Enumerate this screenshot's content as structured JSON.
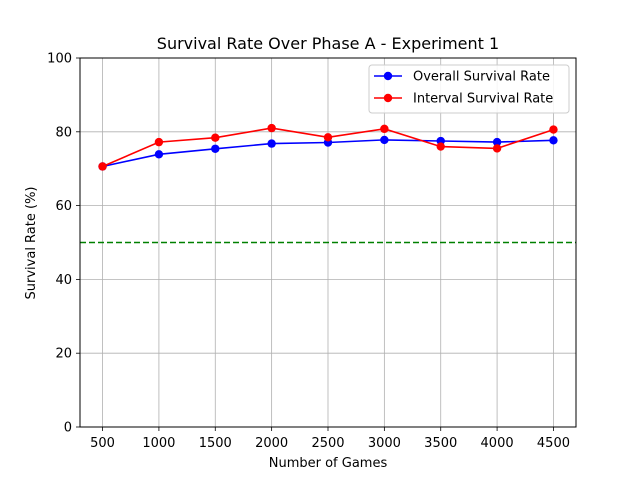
{
  "chart_data": {
    "type": "line",
    "title": "Survival Rate Over Phase A - Experiment 1",
    "xlabel": "Number of Games",
    "ylabel": "Survival Rate (%)",
    "x": [
      500,
      1000,
      1500,
      2000,
      2500,
      3000,
      3500,
      4000,
      4500
    ],
    "xticks": [
      "500",
      "1000",
      "1500",
      "2000",
      "2500",
      "3000",
      "3500",
      "4000",
      "4500"
    ],
    "yticks": [
      "0",
      "20",
      "40",
      "60",
      "80",
      "100"
    ],
    "ylim": [
      0,
      100
    ],
    "xlim": [
      300,
      4700
    ],
    "grid": true,
    "legend_position": "top-right",
    "series": [
      {
        "name": "Overall Survival Rate",
        "color": "#0000ff",
        "values": [
          70.6,
          73.9,
          75.4,
          76.8,
          77.1,
          77.8,
          77.5,
          77.2,
          77.7
        ]
      },
      {
        "name": "Interval Survival Rate",
        "color": "#ff0000",
        "values": [
          70.6,
          77.2,
          78.4,
          81.0,
          78.5,
          80.8,
          76.0,
          75.5,
          80.6
        ]
      }
    ],
    "reference_line": {
      "y": 50,
      "color": "#008000",
      "style": "dashed"
    }
  }
}
